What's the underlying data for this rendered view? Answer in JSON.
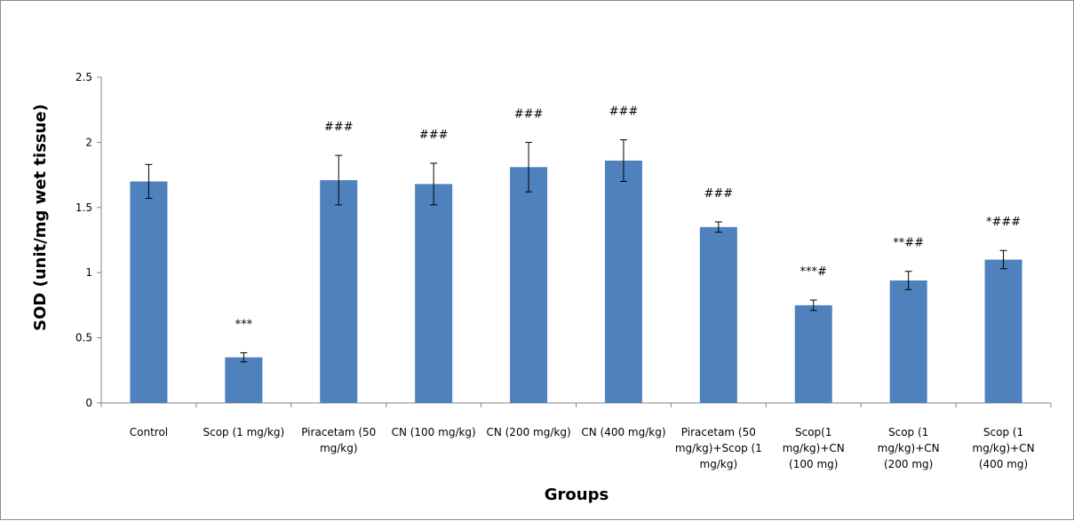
{
  "chart_data": {
    "type": "bar",
    "title": "",
    "xlabel": "Groups",
    "ylabel": "SOD (unit/mg wet tissue)",
    "ylim": [
      0,
      2.5
    ],
    "yticks": [
      "0",
      "0.5",
      "1",
      "1.5",
      "2",
      "2.5"
    ],
    "ytick_values": [
      0,
      0.5,
      1,
      1.5,
      2,
      2.5
    ],
    "grid": false,
    "bar_color": "#4F81BD",
    "categories": [
      [
        "Control"
      ],
      [
        "Scop (1 mg/kg)"
      ],
      [
        "Piracetam (50",
        "mg/kg)"
      ],
      [
        "CN (100 mg/kg)"
      ],
      [
        "CN (200 mg/kg)"
      ],
      [
        "CN (400 mg/kg)"
      ],
      [
        "Piracetam (50",
        "mg/kg)+Scop (1",
        "mg/kg)"
      ],
      [
        "Scop(1",
        "mg/kg)+CN",
        "(100 mg)"
      ],
      [
        "Scop (1",
        "mg/kg)+CN",
        "(200 mg)"
      ],
      [
        "Scop (1",
        "mg/kg)+CN",
        "(400 mg)"
      ]
    ],
    "values": [
      1.7,
      0.35,
      1.71,
      1.68,
      1.81,
      1.86,
      1.35,
      0.75,
      0.94,
      1.1
    ],
    "errors": [
      0.13,
      0.035,
      0.19,
      0.16,
      0.19,
      0.16,
      0.04,
      0.04,
      0.07,
      0.07
    ],
    "annotations": [
      "",
      "***",
      "###",
      "###",
      "###",
      "###",
      "###",
      "***#",
      "**##",
      "*###"
    ]
  }
}
